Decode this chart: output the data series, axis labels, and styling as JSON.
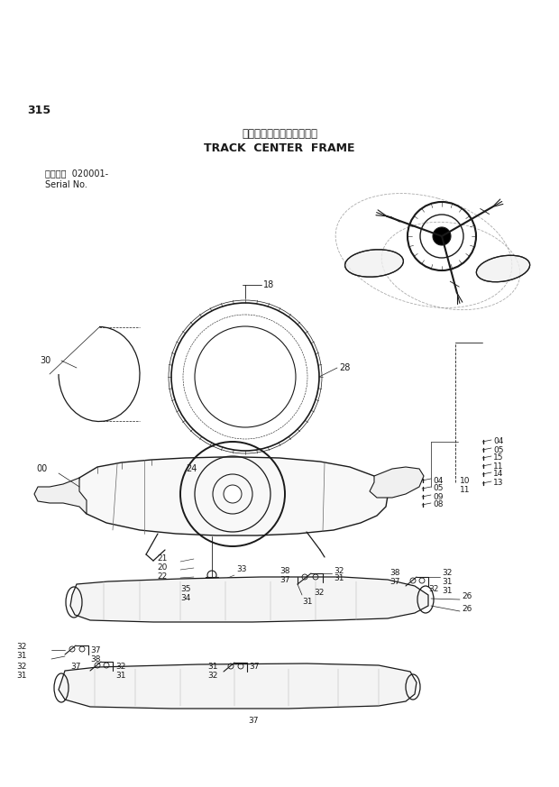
{
  "title_japanese": "トラックセンターフレーム",
  "title_english": "TRACK  CENTER  FRAME",
  "page_number": "315",
  "serial_label": "適用号機  020001-",
  "serial_no": "Serial No.",
  "bg_color": "#ffffff",
  "line_color": "#1a1a1a",
  "figw": 6.2,
  "figh": 8.73,
  "dpi": 100
}
